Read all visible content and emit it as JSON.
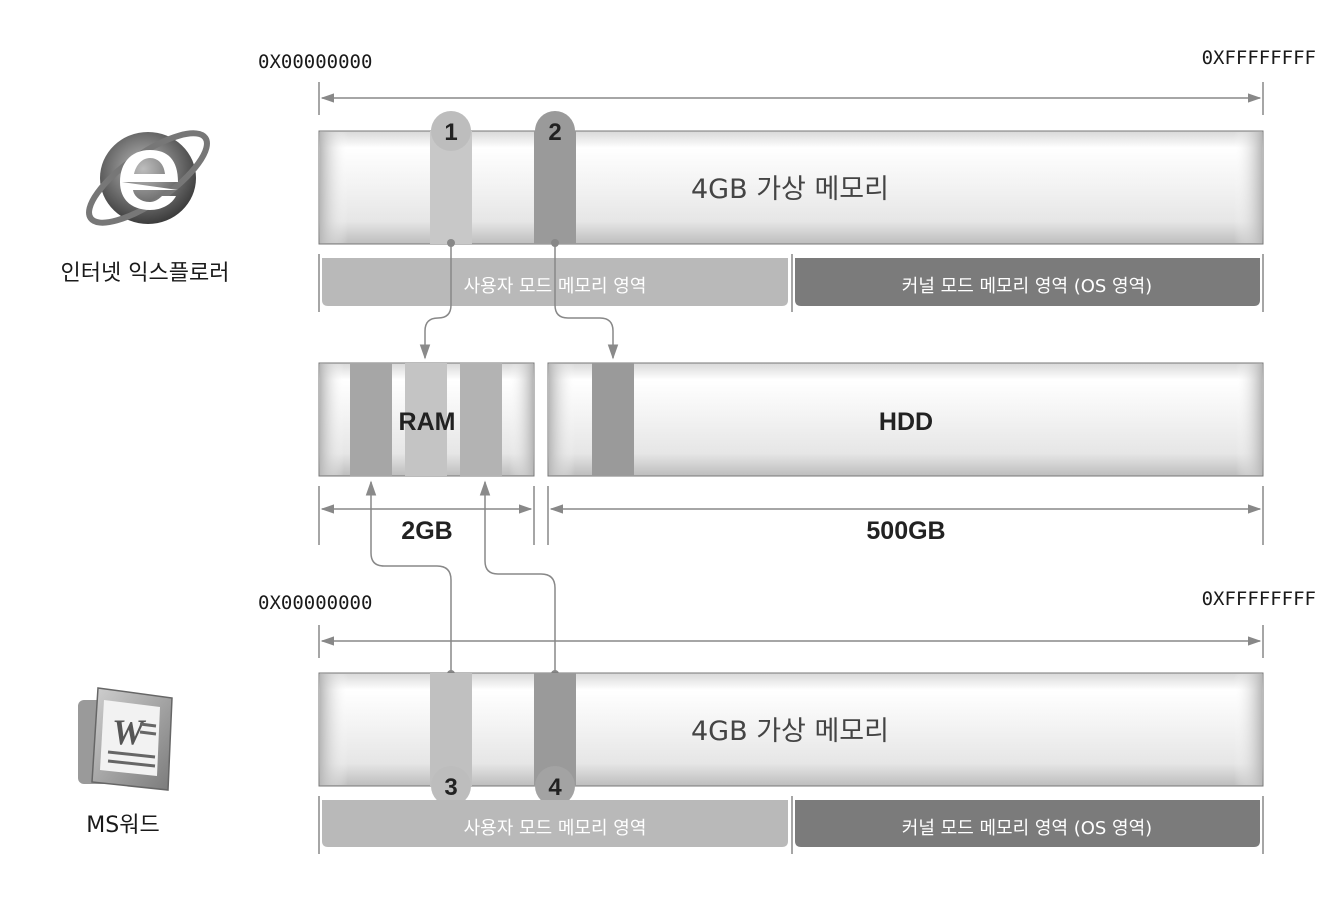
{
  "top": {
    "addr_start": "0X00000000",
    "addr_end": "0XFFFFFFFF",
    "memory_label": "4GB 가상 메모리",
    "user_region": "사용자 모드 메모리 영역",
    "kernel_region": "커널 모드 메모리 영역 (OS 영역)",
    "page1": "1",
    "page2": "2"
  },
  "ie_label": "인터넷 익스플로러",
  "physical": {
    "ram_label": "RAM",
    "hdd_label": "HDD",
    "ram_size": "2GB",
    "hdd_size": "500GB"
  },
  "bottom": {
    "addr_start": "0X00000000",
    "addr_end": "0XFFFFFFFF",
    "memory_label": "4GB 가상 메모리",
    "user_region": "사용자 모드 메모리 영역",
    "kernel_region": "커널 모드 메모리 영역 (OS 영역)",
    "page3": "3",
    "page4": "4"
  },
  "word_label": "MS워드",
  "word_icon_letter": "W",
  "colors": {
    "light_page": "#c8c8c8",
    "dark_page": "#9a9a9a",
    "user_bar": "#b9b9b9",
    "kernel_bar": "#7b7b7b"
  }
}
